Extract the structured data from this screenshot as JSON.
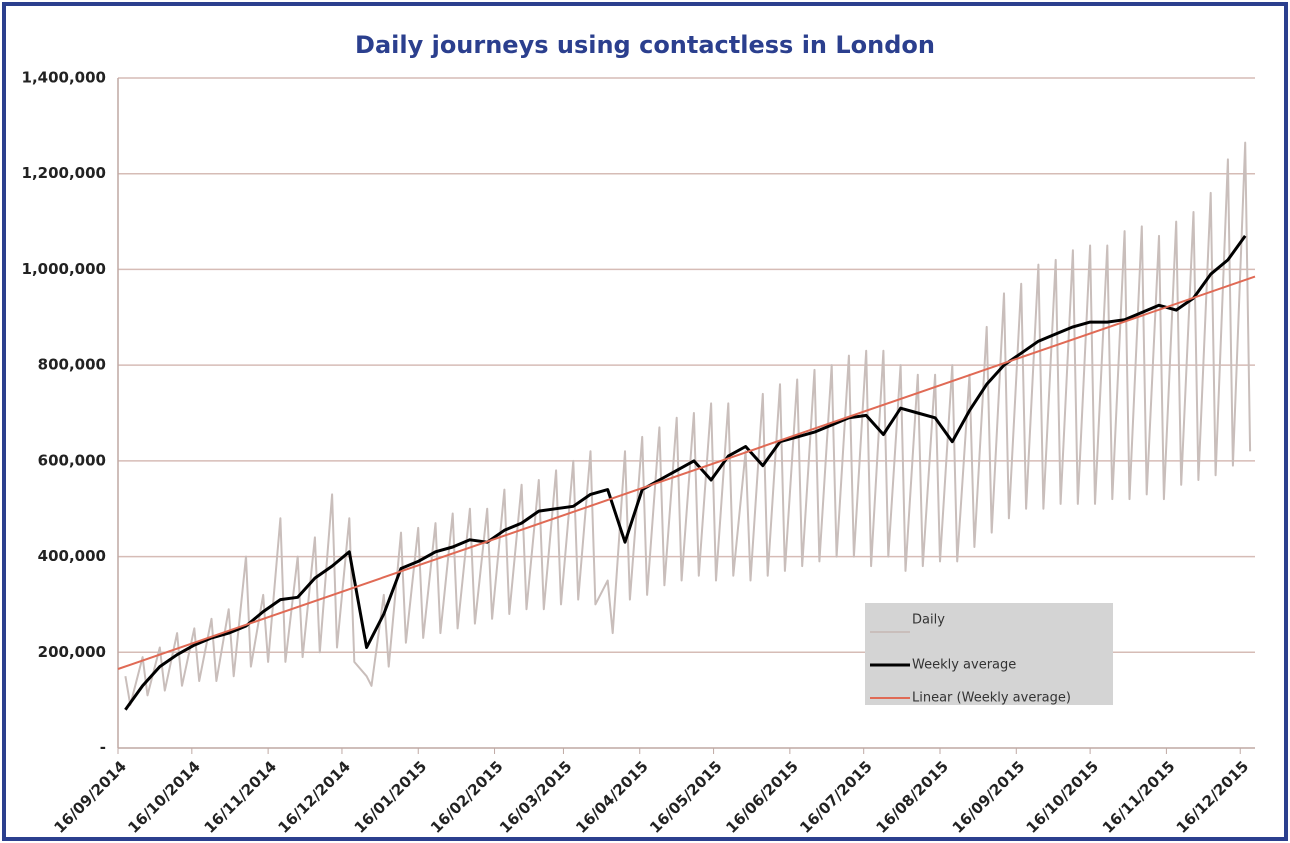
{
  "chart_data": {
    "type": "line",
    "title": "Daily journeys using contactless in London",
    "xlim": [
      "2014-09-16",
      "2015-12-22"
    ],
    "xticks": [
      {
        "value": "2014-09-16",
        "label": "16/09/2014"
      },
      {
        "value": "2014-10-16",
        "label": "16/10/2014"
      },
      {
        "value": "2014-11-16",
        "label": "16/11/2014"
      },
      {
        "value": "2014-12-16",
        "label": "16/12/2014"
      },
      {
        "value": "2015-01-16",
        "label": "16/01/2015"
      },
      {
        "value": "2015-02-16",
        "label": "16/02/2015"
      },
      {
        "value": "2015-03-16",
        "label": "16/03/2015"
      },
      {
        "value": "2015-04-16",
        "label": "16/04/2015"
      },
      {
        "value": "2015-05-16",
        "label": "16/05/2015"
      },
      {
        "value": "2015-06-16",
        "label": "16/06/2015"
      },
      {
        "value": "2015-07-16",
        "label": "16/07/2015"
      },
      {
        "value": "2015-08-16",
        "label": "16/08/2015"
      },
      {
        "value": "2015-09-16",
        "label": "16/09/2015"
      },
      {
        "value": "2015-10-16",
        "label": "16/10/2015"
      },
      {
        "value": "2015-11-16",
        "label": "16/11/2015"
      },
      {
        "value": "2015-12-16",
        "label": "16/12/2015"
      }
    ],
    "ylim": [
      0,
      1400000
    ],
    "yticks": [
      {
        "value": 0,
        "label": "-"
      },
      {
        "value": 200000,
        "label": "200,000"
      },
      {
        "value": 400000,
        "label": "400,000"
      },
      {
        "value": 600000,
        "label": "600,000"
      },
      {
        "value": 800000,
        "label": "800,000"
      },
      {
        "value": 1000000,
        "label": "1,000,000"
      },
      {
        "value": 1200000,
        "label": "1,200,000"
      },
      {
        "value": 1400000,
        "label": "1,400,000"
      }
    ],
    "grid": true,
    "legend": "lower right",
    "series": [
      {
        "name": "Daily",
        "color": "#c9bebb",
        "x": [
          "2014-09-19",
          "2014-09-21",
          "2014-09-26",
          "2014-09-28",
          "2014-10-03",
          "2014-10-05",
          "2014-10-10",
          "2014-10-12",
          "2014-10-17",
          "2014-10-19",
          "2014-10-24",
          "2014-10-26",
          "2014-10-31",
          "2014-11-02",
          "2014-11-07",
          "2014-11-09",
          "2014-11-14",
          "2014-11-16",
          "2014-11-21",
          "2014-11-23",
          "2014-11-28",
          "2014-11-30",
          "2014-12-05",
          "2014-12-07",
          "2014-12-12",
          "2014-12-14",
          "2014-12-19",
          "2014-12-21",
          "2014-12-26",
          "2014-12-28",
          "2015-01-02",
          "2015-01-04",
          "2015-01-09",
          "2015-01-11",
          "2015-01-16",
          "2015-01-18",
          "2015-01-23",
          "2015-01-25",
          "2015-01-30",
          "2015-02-01",
          "2015-02-06",
          "2015-02-08",
          "2015-02-13",
          "2015-02-15",
          "2015-02-20",
          "2015-02-22",
          "2015-02-27",
          "2015-03-01",
          "2015-03-06",
          "2015-03-08",
          "2015-03-13",
          "2015-03-15",
          "2015-03-20",
          "2015-03-22",
          "2015-03-27",
          "2015-03-29",
          "2015-04-03",
          "2015-04-05",
          "2015-04-10",
          "2015-04-12",
          "2015-04-17",
          "2015-04-19",
          "2015-04-24",
          "2015-04-26",
          "2015-05-01",
          "2015-05-03",
          "2015-05-08",
          "2015-05-10",
          "2015-05-15",
          "2015-05-17",
          "2015-05-22",
          "2015-05-24",
          "2015-05-29",
          "2015-05-31",
          "2015-06-05",
          "2015-06-07",
          "2015-06-12",
          "2015-06-14",
          "2015-06-19",
          "2015-06-21",
          "2015-06-26",
          "2015-06-28",
          "2015-07-03",
          "2015-07-05",
          "2015-07-10",
          "2015-07-12",
          "2015-07-17",
          "2015-07-19",
          "2015-07-24",
          "2015-07-26",
          "2015-07-31",
          "2015-08-02",
          "2015-08-07",
          "2015-08-09",
          "2015-08-14",
          "2015-08-16",
          "2015-08-21",
          "2015-08-23",
          "2015-08-28",
          "2015-08-30",
          "2015-09-04",
          "2015-09-06",
          "2015-09-11",
          "2015-09-13",
          "2015-09-18",
          "2015-09-20",
          "2015-09-25",
          "2015-09-27",
          "2015-10-02",
          "2015-10-04",
          "2015-10-09",
          "2015-10-11",
          "2015-10-16",
          "2015-10-18",
          "2015-10-23",
          "2015-10-25",
          "2015-10-30",
          "2015-11-01",
          "2015-11-06",
          "2015-11-08",
          "2015-11-13",
          "2015-11-15",
          "2015-11-20",
          "2015-11-22",
          "2015-11-27",
          "2015-11-29",
          "2015-12-04",
          "2015-12-06",
          "2015-12-11",
          "2015-12-13",
          "2015-12-18",
          "2015-12-20"
        ],
        "values": [
          150000,
          90000,
          190000,
          110000,
          210000,
          120000,
          240000,
          130000,
          250000,
          140000,
          270000,
          140000,
          290000,
          150000,
          400000,
          170000,
          320000,
          180000,
          480000,
          180000,
          400000,
          190000,
          440000,
          200000,
          530000,
          210000,
          480000,
          180000,
          150000,
          130000,
          320000,
          170000,
          450000,
          220000,
          460000,
          230000,
          470000,
          240000,
          490000,
          250000,
          500000,
          260000,
          500000,
          270000,
          540000,
          280000,
          550000,
          290000,
          560000,
          290000,
          580000,
          300000,
          600000,
          310000,
          620000,
          300000,
          350000,
          240000,
          620000,
          310000,
          650000,
          320000,
          670000,
          340000,
          690000,
          350000,
          700000,
          360000,
          720000,
          350000,
          720000,
          360000,
          620000,
          350000,
          740000,
          360000,
          760000,
          370000,
          770000,
          380000,
          790000,
          390000,
          800000,
          400000,
          820000,
          400000,
          830000,
          380000,
          830000,
          400000,
          800000,
          370000,
          780000,
          380000,
          780000,
          390000,
          800000,
          390000,
          780000,
          420000,
          880000,
          450000,
          950000,
          480000,
          970000,
          500000,
          1010000,
          500000,
          1020000,
          510000,
          1040000,
          510000,
          1050000,
          510000,
          1050000,
          520000,
          1080000,
          520000,
          1090000,
          530000,
          1070000,
          520000,
          1100000,
          550000,
          1120000,
          560000,
          1160000,
          570000,
          1230000,
          590000,
          1265000,
          620000
        ]
      },
      {
        "name": "Weekly average",
        "color": "#000000",
        "x": [
          "2014-09-19",
          "2014-09-26",
          "2014-10-03",
          "2014-10-10",
          "2014-10-17",
          "2014-10-24",
          "2014-10-31",
          "2014-11-07",
          "2014-11-14",
          "2014-11-21",
          "2014-11-28",
          "2014-12-05",
          "2014-12-12",
          "2014-12-19",
          "2014-12-26",
          "2015-01-02",
          "2015-01-09",
          "2015-01-16",
          "2015-01-23",
          "2015-01-30",
          "2015-02-06",
          "2015-02-13",
          "2015-02-20",
          "2015-02-27",
          "2015-03-06",
          "2015-03-13",
          "2015-03-20",
          "2015-03-27",
          "2015-04-03",
          "2015-04-10",
          "2015-04-17",
          "2015-04-24",
          "2015-05-01",
          "2015-05-08",
          "2015-05-15",
          "2015-05-22",
          "2015-05-29",
          "2015-06-05",
          "2015-06-12",
          "2015-06-19",
          "2015-06-26",
          "2015-07-03",
          "2015-07-10",
          "2015-07-17",
          "2015-07-24",
          "2015-07-31",
          "2015-08-07",
          "2015-08-14",
          "2015-08-21",
          "2015-08-28",
          "2015-09-04",
          "2015-09-11",
          "2015-09-18",
          "2015-09-25",
          "2015-10-02",
          "2015-10-09",
          "2015-10-16",
          "2015-10-23",
          "2015-10-30",
          "2015-11-06",
          "2015-11-13",
          "2015-11-20",
          "2015-11-27",
          "2015-12-04",
          "2015-12-11",
          "2015-12-18"
        ],
        "values": [
          80000,
          130000,
          170000,
          195000,
          215000,
          230000,
          240000,
          255000,
          285000,
          310000,
          315000,
          355000,
          380000,
          410000,
          210000,
          280000,
          375000,
          390000,
          410000,
          420000,
          435000,
          430000,
          455000,
          470000,
          495000,
          500000,
          505000,
          530000,
          540000,
          430000,
          540000,
          560000,
          580000,
          600000,
          560000,
          610000,
          630000,
          590000,
          640000,
          650000,
          660000,
          675000,
          690000,
          695000,
          655000,
          710000,
          700000,
          690000,
          640000,
          705000,
          760000,
          800000,
          825000,
          850000,
          865000,
          880000,
          890000,
          890000,
          895000,
          910000,
          925000,
          915000,
          940000,
          990000,
          1020000,
          1070000
        ]
      },
      {
        "name": "Linear (Weekly average)",
        "color": "#e06a55",
        "x": [
          "2014-09-16",
          "2015-12-22"
        ],
        "values": [
          165000,
          985000
        ]
      }
    ]
  }
}
